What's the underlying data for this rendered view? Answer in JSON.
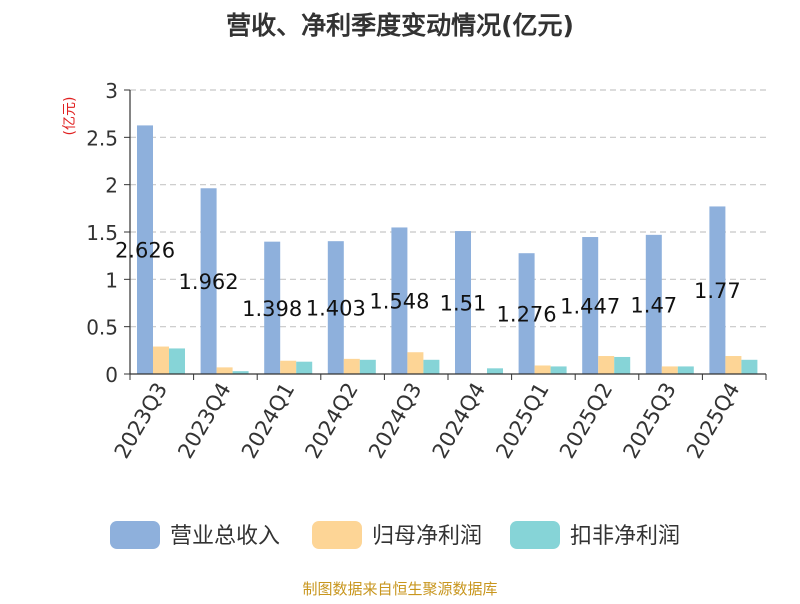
{
  "chart_data": {
    "type": "bar",
    "title": "营收、净利季度变动情况(亿元)",
    "ylabel": "(亿元)",
    "xlabel": "",
    "ylim": [
      0,
      3
    ],
    "yticks": [
      "0",
      "0.5",
      "1",
      "1.5",
      "2",
      "2.5",
      "3"
    ],
    "ytick_values": [
      0,
      0.5,
      1,
      1.5,
      2,
      2.5,
      3
    ],
    "grid": true,
    "legend_position": "bottom",
    "categories": [
      "2023Q3",
      "2023Q4",
      "2024Q1",
      "2024Q2",
      "2024Q3",
      "2024Q4",
      "2025Q1",
      "2025Q2",
      "2025Q3",
      "2025Q4"
    ],
    "series": [
      {
        "name": "营业总收入",
        "color": "#8eb0dc",
        "values": [
          2.626,
          1.962,
          1.398,
          1.403,
          1.548,
          1.51,
          1.276,
          1.447,
          1.47,
          1.77
        ],
        "labels": [
          "2.626",
          "1.962",
          "1.398",
          "1.403",
          "1.548",
          "1.51",
          "1.276",
          "1.447",
          "1.47",
          "1.77"
        ]
      },
      {
        "name": "归母净利润",
        "color": "#fdd596",
        "values": [
          0.29,
          0.07,
          0.14,
          0.16,
          0.23,
          0.0,
          0.09,
          0.19,
          0.08,
          0.19
        ]
      },
      {
        "name": "扣非净利润",
        "color": "#86d4d7",
        "values": [
          0.27,
          0.03,
          0.13,
          0.15,
          0.15,
          0.06,
          0.08,
          0.18,
          0.08,
          0.15
        ]
      }
    ]
  },
  "source_note": "制图数据来自恒生聚源数据库"
}
